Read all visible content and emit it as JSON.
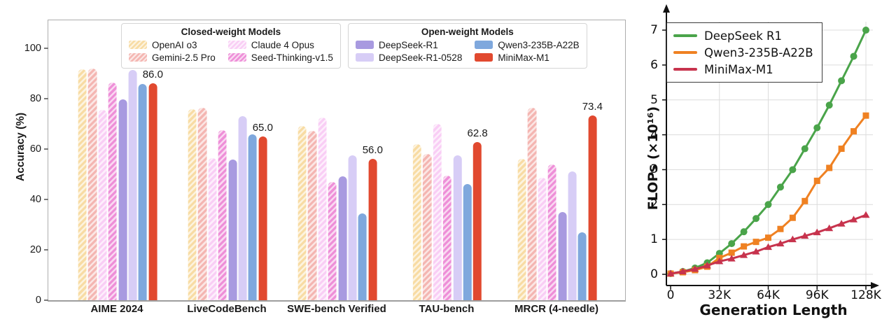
{
  "chart_data": [
    {
      "type": "bar",
      "title": "",
      "ylabel": "Accuracy (%)",
      "ylim": [
        0,
        111
      ],
      "yticks": [
        0,
        20,
        40,
        60,
        80,
        100
      ],
      "grid": false,
      "categories": [
        "AIME 2024",
        "LiveCodeBench",
        "SWE-bench Verified",
        "TAU-bench",
        "MRCR (4-needle)"
      ],
      "legend_groups": [
        {
          "title": "Closed-weight Models",
          "items": [
            "OpenAI o3",
            "Gemini-2.5 Pro",
            "Claude 4 Opus",
            "Seed-Thinking-v1.5"
          ]
        },
        {
          "title": "Open-weight Models",
          "items": [
            "DeepSeek-R1",
            "DeepSeek-R1-0528",
            "Qwen3-235B-A22B",
            "MiniMax-M1"
          ]
        }
      ],
      "series": [
        {
          "name": "OpenAI o3",
          "color": "#f8dca4",
          "hatch": true,
          "values": [
            91.6,
            75.8,
            69.1,
            62.0,
            56.0
          ]
        },
        {
          "name": "Gemini-2.5 Pro",
          "color": "#f4b6b2",
          "hatch": true,
          "values": [
            92.0,
            76.5,
            67.2,
            58.0,
            76.5
          ]
        },
        {
          "name": "Claude 4 Opus",
          "color": "#f9cef5",
          "hatch": true,
          "values": [
            75.5,
            56.5,
            72.5,
            70.0,
            48.5
          ]
        },
        {
          "name": "Seed-Thinking-v1.5",
          "color": "#ee8fd8",
          "hatch": true,
          "values": [
            86.5,
            67.5,
            47.0,
            49.5,
            54.0
          ]
        },
        {
          "name": "DeepSeek-R1",
          "color": "#a89ae0",
          "hatch": false,
          "values": [
            79.8,
            55.9,
            49.2,
            null,
            35.0
          ]
        },
        {
          "name": "DeepSeek-R1-0528",
          "color": "#d7cdf6",
          "hatch": false,
          "values": [
            91.4,
            73.1,
            57.6,
            57.5,
            51.0
          ]
        },
        {
          "name": "Qwen3-235B-A22B",
          "color": "#7fa8dd",
          "hatch": false,
          "values": [
            85.7,
            65.9,
            34.4,
            46.0,
            27.0
          ]
        },
        {
          "name": "MiniMax-M1",
          "color": "#e1492f",
          "hatch": false,
          "values": [
            86.0,
            65.0,
            56.0,
            62.8,
            73.4
          ],
          "bar_labels": [
            "86.0",
            "65.0",
            "56.0",
            "62.8",
            "73.4"
          ]
        }
      ]
    },
    {
      "type": "line",
      "title": "",
      "xlabel": "Generation Length",
      "ylabel": "FLOPs (×10¹⁶)",
      "xticks": [
        "0",
        "32K",
        "64K",
        "96K",
        "128K"
      ],
      "xtick_values": [
        0,
        32,
        64,
        96,
        128
      ],
      "yticks": [
        0,
        1,
        2,
        3,
        4,
        5,
        6,
        7
      ],
      "ylim": [
        0,
        7
      ],
      "xlim_k": [
        0,
        128
      ],
      "grid": true,
      "legend_position": "upper-left",
      "x_k": [
        0,
        8,
        16,
        24,
        32,
        40,
        48,
        56,
        64,
        72,
        80,
        88,
        96,
        104,
        112,
        120,
        128
      ],
      "series": [
        {
          "name": "DeepSeek R1",
          "color": "#4aa44a",
          "marker": "circle",
          "values": [
            0.02,
            0.08,
            0.18,
            0.33,
            0.6,
            0.88,
            1.22,
            1.6,
            2.0,
            2.5,
            3.0,
            3.6,
            4.2,
            4.85,
            5.55,
            6.25,
            7.0
          ]
        },
        {
          "name": "Qwen3-235B-A22B",
          "color": "#ef8122",
          "marker": "square",
          "values": [
            0.02,
            0.06,
            0.12,
            0.22,
            0.47,
            0.62,
            0.8,
            0.93,
            1.05,
            1.3,
            1.62,
            2.1,
            2.68,
            3.05,
            3.6,
            4.1,
            4.55
          ]
        },
        {
          "name": "MiniMax-M1",
          "color": "#c7334d",
          "marker": "triangle",
          "values": [
            0.02,
            0.08,
            0.15,
            0.25,
            0.37,
            0.45,
            0.55,
            0.65,
            0.78,
            0.88,
            1.0,
            1.1,
            1.2,
            1.32,
            1.45,
            1.57,
            1.7
          ]
        }
      ]
    }
  ]
}
